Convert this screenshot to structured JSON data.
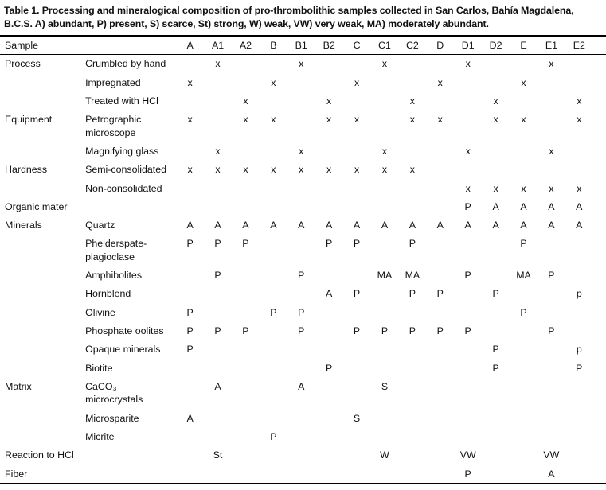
{
  "title": "Table 1. Processing and mineralogical composition of pro-thrombolithic samples collected in San Carlos, Bahía Magdalena, B.C.S. A) abundant, P) present, S) scarce, St) strong, W) weak, VW) very weak, MA) moderately abundant.",
  "table": {
    "corner_header": "Sample",
    "sample_columns": [
      "A",
      "A1",
      "A2",
      "B",
      "B1",
      "B2",
      "C",
      "C1",
      "C2",
      "D",
      "D1",
      "D2",
      "E",
      "E1",
      "E2"
    ],
    "rows": [
      {
        "category": "Process",
        "label": "Crumbled by hand",
        "cells": [
          "",
          "x",
          "",
          "",
          "x",
          "",
          "",
          "x",
          "",
          "",
          "x",
          "",
          "",
          "x",
          ""
        ]
      },
      {
        "category": "",
        "label": "Impregnated",
        "cells": [
          "x",
          "",
          "",
          "x",
          "",
          "",
          "x",
          "",
          "",
          "x",
          "",
          "",
          "x",
          "",
          ""
        ]
      },
      {
        "category": "",
        "label": "Treated with HCl",
        "cells": [
          "",
          "",
          "x",
          "",
          "",
          "x",
          "",
          "",
          "x",
          "",
          "",
          "x",
          "",
          "",
          "x"
        ]
      },
      {
        "category": "Equipment",
        "label": "Petrographic microscope",
        "cells": [
          "x",
          "",
          "x",
          "x",
          "",
          "x",
          "x",
          "",
          "x",
          "x",
          "",
          "x",
          "x",
          "",
          "x"
        ]
      },
      {
        "category": "",
        "label": "Magnifying glass",
        "cells": [
          "",
          "x",
          "",
          "",
          "x",
          "",
          "",
          "x",
          "",
          "",
          "x",
          "",
          "",
          "x",
          ""
        ]
      },
      {
        "category": "Hardness",
        "label": "Semi-consolidated",
        "cells": [
          "x",
          "x",
          "x",
          "x",
          "x",
          "x",
          "x",
          "x",
          "x",
          "",
          "",
          "",
          "",
          "",
          ""
        ]
      },
      {
        "category": "",
        "label": "Non-consolidated",
        "cells": [
          "",
          "",
          "",
          "",
          "",
          "",
          "",
          "",
          "",
          "",
          "x",
          "x",
          "x",
          "x",
          "x"
        ]
      },
      {
        "category": "Organic mater",
        "label": "",
        "cells": [
          "",
          "",
          "",
          "",
          "",
          "",
          "",
          "",
          "",
          "",
          "P",
          "A",
          "A",
          "A",
          "A"
        ]
      },
      {
        "category": "Minerals",
        "label": "Quartz",
        "cells": [
          "A",
          "A",
          "A",
          "A",
          "A",
          "A",
          "A",
          "A",
          "A",
          "A",
          "A",
          "A",
          "A",
          "A",
          "A"
        ]
      },
      {
        "category": "",
        "label": "Phelderspate-plagioclase",
        "cells": [
          "P",
          "P",
          "P",
          "",
          "",
          "P",
          "P",
          "",
          "P",
          "",
          "",
          "",
          "P",
          "",
          ""
        ]
      },
      {
        "category": "",
        "label": "Amphibolites",
        "cells": [
          "",
          "P",
          "",
          "",
          "P",
          "",
          "",
          "MA",
          "MA",
          "",
          "P",
          "",
          "MA",
          "P",
          ""
        ]
      },
      {
        "category": "",
        "label": "Hornblend",
        "cells": [
          "",
          "",
          "",
          "",
          "",
          "A",
          "P",
          "",
          "P",
          "P",
          "",
          "P",
          "",
          "",
          "p"
        ]
      },
      {
        "category": "",
        "label": "Olivine",
        "cells": [
          "P",
          "",
          "",
          "P",
          "P",
          "",
          "",
          "",
          "",
          "",
          "",
          "",
          "P",
          "",
          ""
        ]
      },
      {
        "category": "",
        "label": "Phosphate oolites",
        "cells": [
          "P",
          "P",
          "P",
          "",
          "P",
          "",
          "P",
          "P",
          "P",
          "P",
          "P",
          "",
          "",
          "P",
          ""
        ]
      },
      {
        "category": "",
        "label": "Opaque minerals",
        "cells": [
          "P",
          "",
          "",
          "",
          "",
          "",
          "",
          "",
          "",
          "",
          "",
          "P",
          "",
          "",
          "p"
        ]
      },
      {
        "category": "",
        "label": "Biotite",
        "cells": [
          "",
          "",
          "",
          "",
          "",
          "P",
          "",
          "",
          "",
          "",
          "",
          "P",
          "",
          "",
          "P"
        ]
      },
      {
        "category": "Matrix",
        "label": "CaCO₃ microcrystals",
        "cells": [
          "",
          "A",
          "",
          "",
          "A",
          "",
          "",
          "S",
          "",
          "",
          "",
          "",
          "",
          "",
          ""
        ]
      },
      {
        "category": "",
        "label": "Microsparite",
        "cells": [
          "A",
          "",
          "",
          "",
          "",
          "",
          "S",
          "",
          "",
          "",
          "",
          "",
          "",
          "",
          ""
        ]
      },
      {
        "category": "",
        "label": "Micrite",
        "cells": [
          "",
          "",
          "",
          "P",
          "",
          "",
          "",
          "",
          "",
          "",
          "",
          "",
          "",
          "",
          ""
        ]
      },
      {
        "category": "Reaction to HCl",
        "label": "",
        "cells": [
          "",
          "St",
          "",
          "",
          "",
          "",
          "",
          "W",
          "",
          "",
          "VW",
          "",
          "",
          "VW",
          ""
        ]
      },
      {
        "category": "Fiber",
        "label": "",
        "cells": [
          "",
          "",
          "",
          "",
          "",
          "",
          "",
          "",
          "",
          "",
          "P",
          "",
          "",
          "A",
          ""
        ]
      }
    ]
  },
  "colors": {
    "text": "#111111",
    "background": "#ffffff",
    "rule": "#000000"
  }
}
